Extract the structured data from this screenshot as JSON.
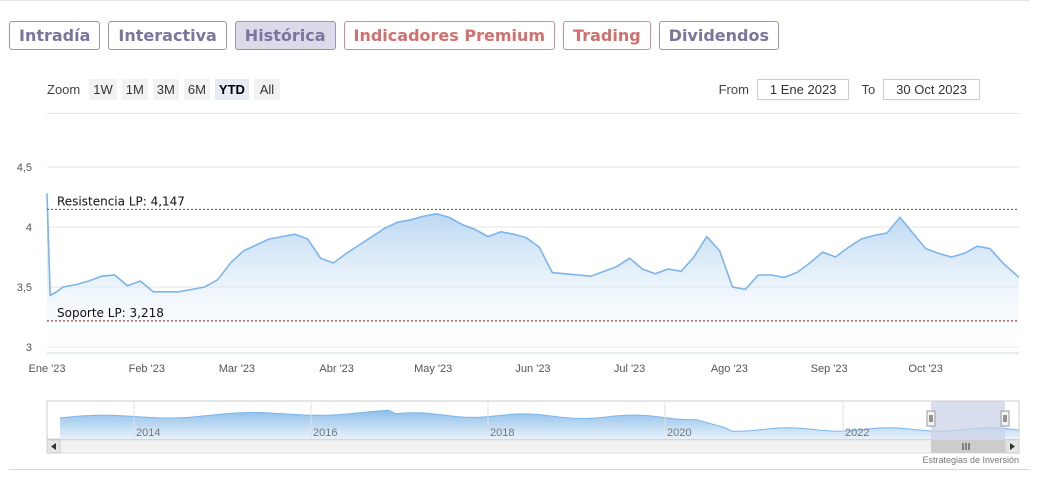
{
  "tabs": [
    {
      "label": "Intradía",
      "style": "normal"
    },
    {
      "label": "Interactiva",
      "style": "normal"
    },
    {
      "label": "Histórica",
      "style": "active"
    },
    {
      "label": "Indicadores Premium",
      "style": "red"
    },
    {
      "label": "Trading",
      "style": "red"
    },
    {
      "label": "Dividendos",
      "style": "normal"
    }
  ],
  "zoom": {
    "label": "Zoom",
    "buttons": [
      "1W",
      "1M",
      "3M",
      "6M",
      "YTD",
      "All"
    ],
    "selected": "YTD"
  },
  "range": {
    "from_label": "From",
    "from_value": "1 Ene 2023",
    "to_label": "To",
    "to_value": "30 Oct 2023"
  },
  "credit": "Estrategias de Inversión",
  "colors": {
    "line": "#7cb5ec",
    "resistance": "#2e6b2e",
    "support": "#8b1a1a",
    "navigator_mask": "#ccd3e8"
  },
  "chart_data": {
    "type": "area",
    "ylim": [
      3,
      4.5
    ],
    "yticks": [
      "3",
      "3,5",
      "4",
      "4,5"
    ],
    "xticks": [
      "Ene '23",
      "Feb '23",
      "Mar '23",
      "Abr '23",
      "May '23",
      "Jun '23",
      "Jul '23",
      "Ago '23",
      "Sep '23",
      "Oct '23"
    ],
    "xrange": [
      "2023-01-01",
      "2023-10-30"
    ],
    "series": [
      {
        "x": [
          "2023-01-01",
          "2023-01-02",
          "2023-01-04",
          "2023-01-06",
          "2023-01-10",
          "2023-01-14",
          "2023-01-18",
          "2023-01-22",
          "2023-01-26",
          "2023-01-30",
          "2023-02-03",
          "2023-02-07",
          "2023-02-11",
          "2023-02-15",
          "2023-02-19",
          "2023-02-23",
          "2023-02-27",
          "2023-03-03",
          "2023-03-07",
          "2023-03-11",
          "2023-03-15",
          "2023-03-19",
          "2023-03-23",
          "2023-03-27",
          "2023-03-31",
          "2023-04-04",
          "2023-04-08",
          "2023-04-12",
          "2023-04-16",
          "2023-04-20",
          "2023-04-24",
          "2023-04-28",
          "2023-05-02",
          "2023-05-06",
          "2023-05-10",
          "2023-05-14",
          "2023-05-18",
          "2023-05-22",
          "2023-05-26",
          "2023-05-30",
          "2023-06-03",
          "2023-06-07",
          "2023-06-11",
          "2023-06-15",
          "2023-06-19",
          "2023-06-23",
          "2023-06-27",
          "2023-07-01",
          "2023-07-05",
          "2023-07-09",
          "2023-07-13",
          "2023-07-17",
          "2023-07-21",
          "2023-07-25",
          "2023-07-29",
          "2023-08-02",
          "2023-08-06",
          "2023-08-10",
          "2023-08-14",
          "2023-08-18",
          "2023-08-22",
          "2023-08-26",
          "2023-08-30",
          "2023-09-03",
          "2023-09-07",
          "2023-09-11",
          "2023-09-15",
          "2023-09-19",
          "2023-09-23",
          "2023-09-27",
          "2023-10-01",
          "2023-10-05",
          "2023-10-09",
          "2023-10-13",
          "2023-10-17",
          "2023-10-21",
          "2023-10-25",
          "2023-10-30"
        ],
        "values": [
          4.28,
          3.43,
          3.46,
          3.5,
          3.52,
          3.55,
          3.59,
          3.6,
          3.51,
          3.55,
          3.46,
          3.46,
          3.46,
          3.48,
          3.5,
          3.56,
          3.7,
          3.8,
          3.85,
          3.9,
          3.92,
          3.94,
          3.9,
          3.74,
          3.7,
          3.78,
          3.85,
          3.92,
          3.99,
          4.04,
          4.06,
          4.09,
          4.11,
          4.08,
          4.02,
          3.98,
          3.92,
          3.96,
          3.94,
          3.91,
          3.83,
          3.62,
          3.61,
          3.6,
          3.59,
          3.63,
          3.67,
          3.74,
          3.65,
          3.61,
          3.65,
          3.63,
          3.75,
          3.92,
          3.8,
          3.5,
          3.48,
          3.6,
          3.6,
          3.58,
          3.62,
          3.7,
          3.79,
          3.75,
          3.83,
          3.9,
          3.93,
          3.95,
          4.08,
          3.95,
          3.82,
          3.78,
          3.75,
          3.78,
          3.84,
          3.82,
          3.7,
          3.58
        ]
      }
    ],
    "lines": [
      {
        "label": "Resistencia LP: 4,147",
        "value": 4.147
      },
      {
        "label": "Soporte LP: 3,218",
        "value": 3.218
      }
    ],
    "navigator": {
      "xticks": [
        "2014",
        "2016",
        "2018",
        "2020",
        "2022"
      ]
    }
  }
}
